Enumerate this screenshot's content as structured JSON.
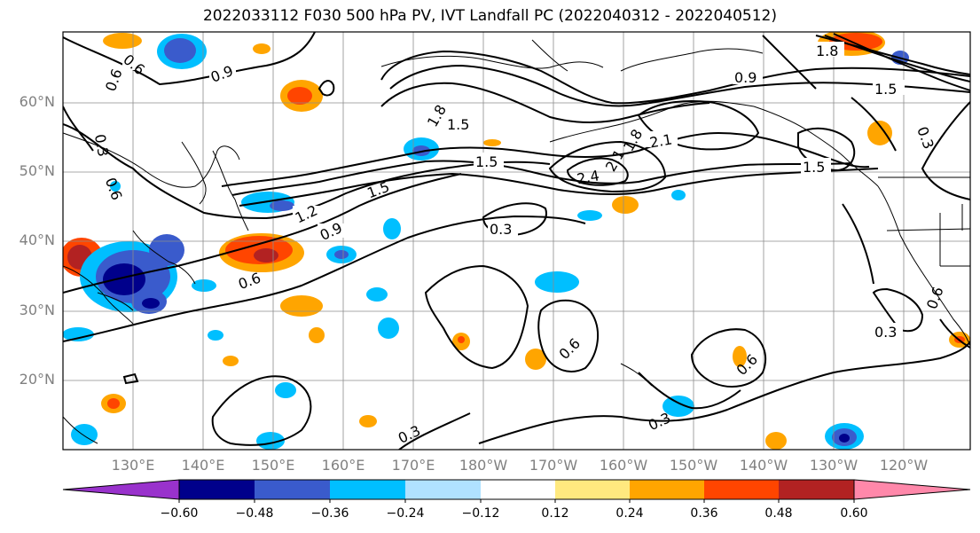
{
  "title": "2022033112 F030 500 hPa PV, IVT Landfall PC (2022040312 - 2022040512)",
  "lat_labels": [
    "60°N",
    "50°N",
    "40°N",
    "30°N",
    "20°N"
  ],
  "lon_labels": [
    "130°E",
    "140°E",
    "150°E",
    "160°E",
    "170°E",
    "180°W",
    "170°W",
    "160°W",
    "150°W",
    "140°W",
    "130°W",
    "120°W"
  ],
  "colorbar": {
    "ticks": [
      "−0.60",
      "−0.48",
      "−0.36",
      "−0.24",
      "−0.12",
      "0.12",
      "0.24",
      "0.36",
      "0.48",
      "0.60"
    ],
    "colors": [
      "#9932cc",
      "#00008b",
      "#3a5bcc",
      "#00bfff",
      "#b0e2ff",
      "#ffffff",
      "#ffe97f",
      "#ffa500",
      "#ff4500",
      "#b22222",
      "#ff88aa"
    ]
  },
  "contour_labels": [
    "0.6",
    "0.9",
    "0.3",
    "0.6",
    "1.2",
    "0.9",
    "0.6",
    "0.6",
    "1.8",
    "1.5",
    "1.5",
    "1.5",
    "2.4",
    "2.1",
    "1.8",
    "2.1",
    "0.9",
    "1.8",
    "1.5",
    "1.5",
    "0.3",
    "0.6",
    "0.3",
    "0.6",
    "0.3",
    "0.3",
    "0.3",
    "0.6"
  ]
}
